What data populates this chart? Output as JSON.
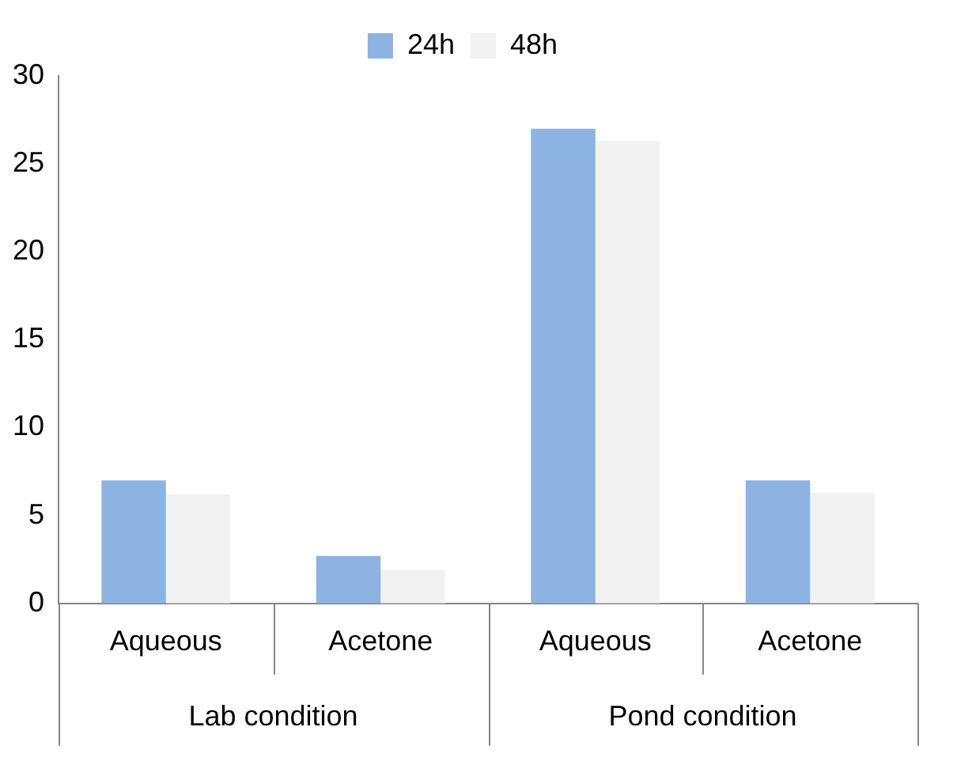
{
  "chart_data": {
    "type": "bar",
    "categories": [
      "Aqueous",
      "Acetone",
      "Aqueous",
      "Acetone"
    ],
    "series": [
      {
        "name": "24h",
        "color": "#8db3e2",
        "values": [
          7,
          2.7,
          27,
          7
        ]
      },
      {
        "name": "48h",
        "color": "#f2f2f2",
        "values": [
          6.2,
          1.9,
          26.3,
          6.3
        ]
      }
    ],
    "annotations": [
      "Lab condition",
      "Pond condition"
    ],
    "ylim": [
      0,
      30
    ],
    "yticks": [
      0,
      5,
      10,
      15,
      20,
      25,
      30
    ],
    "grid": false,
    "legend": "top"
  }
}
